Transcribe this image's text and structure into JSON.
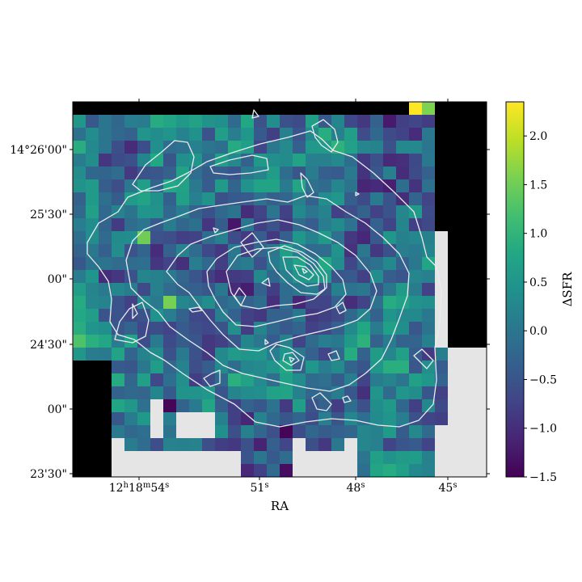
{
  "chart_data": {
    "type": "heatmap",
    "title": "",
    "xlabel": "RA",
    "ylabel": "",
    "x_ticks": [
      {
        "h": "12",
        "m": "18",
        "s": "54",
        "label": "12h18m54s"
      },
      {
        "s": "51",
        "label": "51s"
      },
      {
        "s": "48",
        "label": "48s"
      },
      {
        "s": "45",
        "label": "45s"
      }
    ],
    "y_ticks": [
      "14°26'00\"",
      "25'30\"",
      "00\"",
      "24'30\"",
      "00\"",
      "23'30\""
    ],
    "colorbar": {
      "label": "ΔSFR",
      "colormap": "viridis",
      "range": [
        -1.5,
        2.35
      ],
      "ticks": [
        "2.0",
        "1.5",
        "1.0",
        "0.5",
        "0.0",
        "−0.5",
        "−1.0",
        "−1.5"
      ]
    },
    "contours": {
      "color": "#e8eef0",
      "description": "white contour lines over the map"
    },
    "masked_colors": {
      "no_data": "#000000",
      "outside_footprint": "#e5e5e5"
    }
  }
}
